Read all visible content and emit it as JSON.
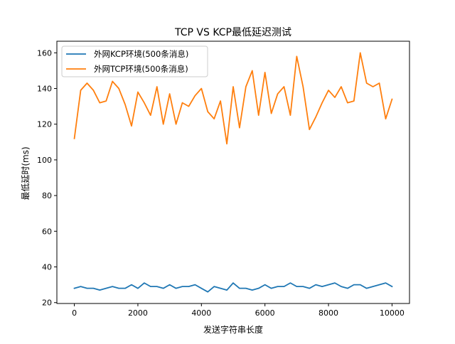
{
  "chart_data": {
    "type": "line",
    "title": "TCP VS KCP最低延迟测试",
    "xlabel": "发送字符串长度",
    "ylabel": "最低延时(ms)",
    "xlim": [
      -550,
      10550
    ],
    "ylim": [
      19.5,
      166.5
    ],
    "xticks": [
      0,
      2000,
      4000,
      6000,
      8000,
      10000
    ],
    "yticks": [
      20,
      40,
      60,
      80,
      100,
      120,
      140,
      160
    ],
    "xtick_labels": [
      "0",
      "2000",
      "4000",
      "6000",
      "8000",
      "10000"
    ],
    "ytick_labels": [
      "20",
      "40",
      "60",
      "80",
      "100",
      "120",
      "140",
      "160"
    ],
    "grid": false,
    "legend_position": "top-left",
    "x": [
      0,
      200,
      400,
      600,
      800,
      1000,
      1200,
      1400,
      1600,
      1800,
      2000,
      2200,
      2400,
      2600,
      2800,
      3000,
      3200,
      3400,
      3600,
      3800,
      4000,
      4200,
      4400,
      4600,
      4800,
      5000,
      5200,
      5400,
      5600,
      5800,
      6000,
      6200,
      6400,
      6600,
      6800,
      7000,
      7200,
      7400,
      7600,
      7800,
      8000,
      8200,
      8400,
      8600,
      8800,
      9000,
      9200,
      9400,
      9600,
      9800,
      10000
    ],
    "series": [
      {
        "name": "外网KCP环境(500条消息)",
        "color": "#1f77b4",
        "values": [
          28,
          29,
          28,
          28,
          27,
          28,
          29,
          28,
          28,
          30,
          28,
          31,
          29,
          29,
          28,
          30,
          28,
          29,
          29,
          30,
          28,
          26,
          29,
          28,
          27,
          31,
          28,
          28,
          27,
          28,
          30,
          28,
          29,
          29,
          31,
          29,
          29,
          28,
          30,
          29,
          30,
          31,
          29,
          28,
          30,
          30,
          28,
          29,
          30,
          31,
          29
        ]
      },
      {
        "name": "外网TCP环境(500条消息)",
        "color": "#ff7f0e",
        "values": [
          112,
          139,
          143,
          139,
          132,
          133,
          144,
          140,
          131,
          119,
          138,
          132,
          125,
          141,
          120,
          137,
          120,
          132,
          130,
          136,
          140,
          127,
          123,
          133,
          109,
          141,
          118,
          141,
          150,
          125,
          149,
          126,
          137,
          141,
          125,
          158,
          141,
          117,
          124,
          132,
          139,
          135,
          141,
          132,
          133,
          160,
          143,
          141,
          143,
          123,
          134
        ]
      }
    ]
  }
}
